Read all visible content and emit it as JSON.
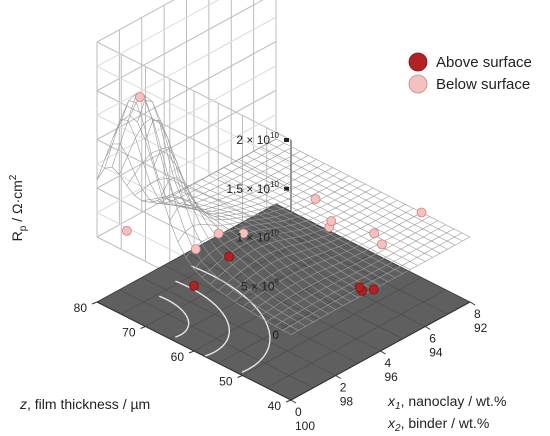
{
  "chart_data": {
    "type": "scatter",
    "subtype": "3d-response-surface",
    "zlabel": "R",
    "zlabel_sub": "p",
    "zlabel_unit": " / Ω·cm",
    "zlabel_sup": "2",
    "z_ticks": [
      {
        "value": 0,
        "label": "0"
      },
      {
        "value": 5000000000,
        "label": "5 × 10",
        "exp": "9"
      },
      {
        "value": 10000000000,
        "label": "1 × 10",
        "exp": "10"
      },
      {
        "value": 15000000000,
        "label": "1.5 × 10",
        "exp": "10"
      },
      {
        "value": 20000000000,
        "label": "2 × 10",
        "exp": "10"
      }
    ],
    "zlim": [
      0,
      20000000000
    ],
    "film_axis": {
      "label": "z, film thickness / µm",
      "label_var": "z",
      "label_rest": ", film thickness / µm",
      "range": [
        40,
        80
      ],
      "ticks": [
        "40",
        "50",
        "60",
        "70",
        "80"
      ]
    },
    "composition_axis": {
      "label_line1_var": "x",
      "label_line1_sub": "1",
      "label_line1_rest": ", nanoclay / wt.%",
      "label_line2_var": "x",
      "label_line2_sub": "2",
      "label_line2_rest": ", binder / wt.%",
      "range": [
        0,
        8
      ],
      "ticks_nanoclay": [
        "0",
        "2",
        "4",
        "6",
        "8"
      ],
      "ticks_binder": [
        "100",
        "98",
        "96",
        "94",
        "92"
      ]
    },
    "legend": {
      "position": "top-right",
      "entries": [
        {
          "label": "Above surface",
          "color": "#b22222"
        },
        {
          "label": "Below surface",
          "color": "#f4c1c1"
        }
      ]
    },
    "series": [
      {
        "name": "Above surface",
        "color": "#b22222",
        "points": [
          {
            "x1": 0.0,
            "z": 60,
            "rp": 0
          },
          {
            "x1": 3.4,
            "z": 41,
            "rp": 0
          },
          {
            "x1": 3.5,
            "z": 42,
            "rp": 0
          },
          {
            "x1": 3.7,
            "z": 40,
            "rp": 0
          },
          {
            "x1": 2.0,
            "z": 62,
            "rp": 0
          }
        ]
      },
      {
        "name": "Below surface",
        "color": "#f4c1c1",
        "points": [
          {
            "x1": 0.4,
            "z": 73,
            "rp": 15600000000
          },
          {
            "x1": 1.1,
            "z": 60,
            "rp": 4000000000
          },
          {
            "x1": 1.6,
            "z": 67,
            "rp": 0
          },
          {
            "x1": 0.9,
            "z": 78,
            "rp": 0
          },
          {
            "x1": 3.3,
            "z": 65,
            "rp": 0
          },
          {
            "x1": 5.8,
            "z": 48,
            "rp": 0
          },
          {
            "x1": 6.3,
            "z": 64,
            "rp": 0
          },
          {
            "x1": 5.4,
            "z": 57,
            "rp": 0
          },
          {
            "x1": 5.7,
            "z": 58,
            "rp": 0
          },
          {
            "x1": 6.1,
            "z": 51,
            "rp": 0
          },
          {
            "x1": 8.0,
            "z": 50,
            "rp": 0
          }
        ]
      }
    ]
  }
}
